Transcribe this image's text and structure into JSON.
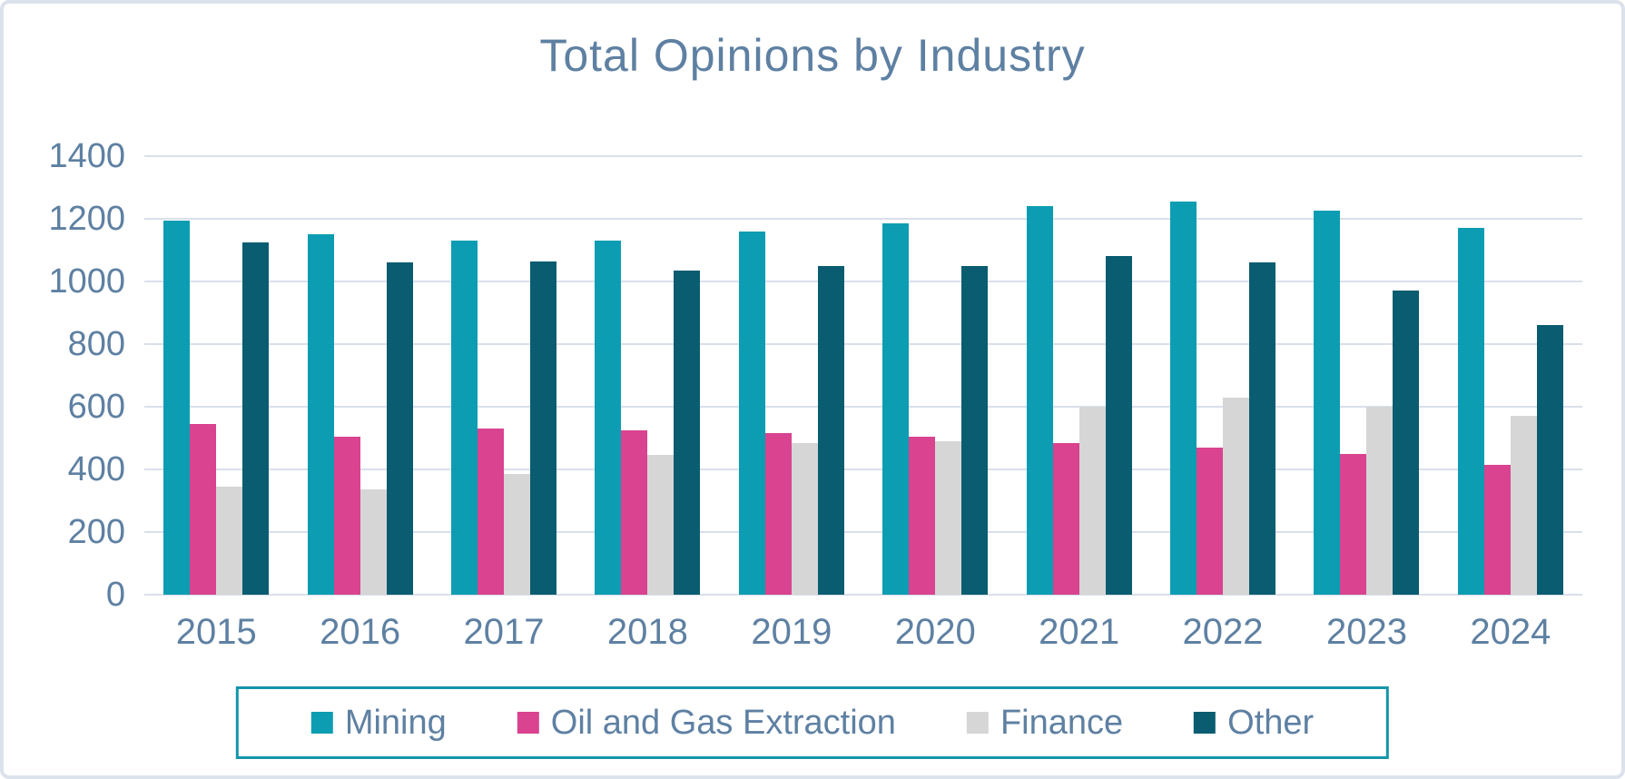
{
  "card": {
    "background": "#ffffff",
    "border_color": "#dce2ec"
  },
  "chart_data": {
    "type": "bar",
    "title": "Total Opinions by Industry",
    "categories": [
      "2015",
      "2016",
      "2017",
      "2018",
      "2019",
      "2020",
      "2021",
      "2022",
      "2023",
      "2024"
    ],
    "series": [
      {
        "name": "Mining",
        "color": "#0c9db3",
        "values": [
          1195,
          1150,
          1130,
          1130,
          1160,
          1185,
          1240,
          1255,
          1225,
          1170
        ]
      },
      {
        "name": "Oil and Gas Extraction",
        "color": "#d9438f",
        "values": [
          545,
          505,
          530,
          525,
          515,
          505,
          485,
          470,
          450,
          415
        ]
      },
      {
        "name": "Finance",
        "color": "#d6d6d7",
        "values": [
          345,
          335,
          385,
          445,
          485,
          490,
          600,
          630,
          600,
          570
        ]
      },
      {
        "name": "Other",
        "color": "#0a5c70",
        "values": [
          1125,
          1060,
          1065,
          1035,
          1050,
          1050,
          1080,
          1060,
          970,
          860
        ]
      }
    ],
    "y_axis": {
      "min": 0,
      "max": 1400,
      "step": 200,
      "tick_labels": [
        "0",
        "200",
        "400",
        "600",
        "800",
        "1000",
        "1200",
        "1400"
      ]
    },
    "xlabel": "",
    "ylabel": "",
    "grid": true,
    "gridline_color": "#d9e0ea",
    "legend_position": "bottom",
    "legend_border_color": "#1495aa",
    "text_color": "#5e80a2"
  }
}
